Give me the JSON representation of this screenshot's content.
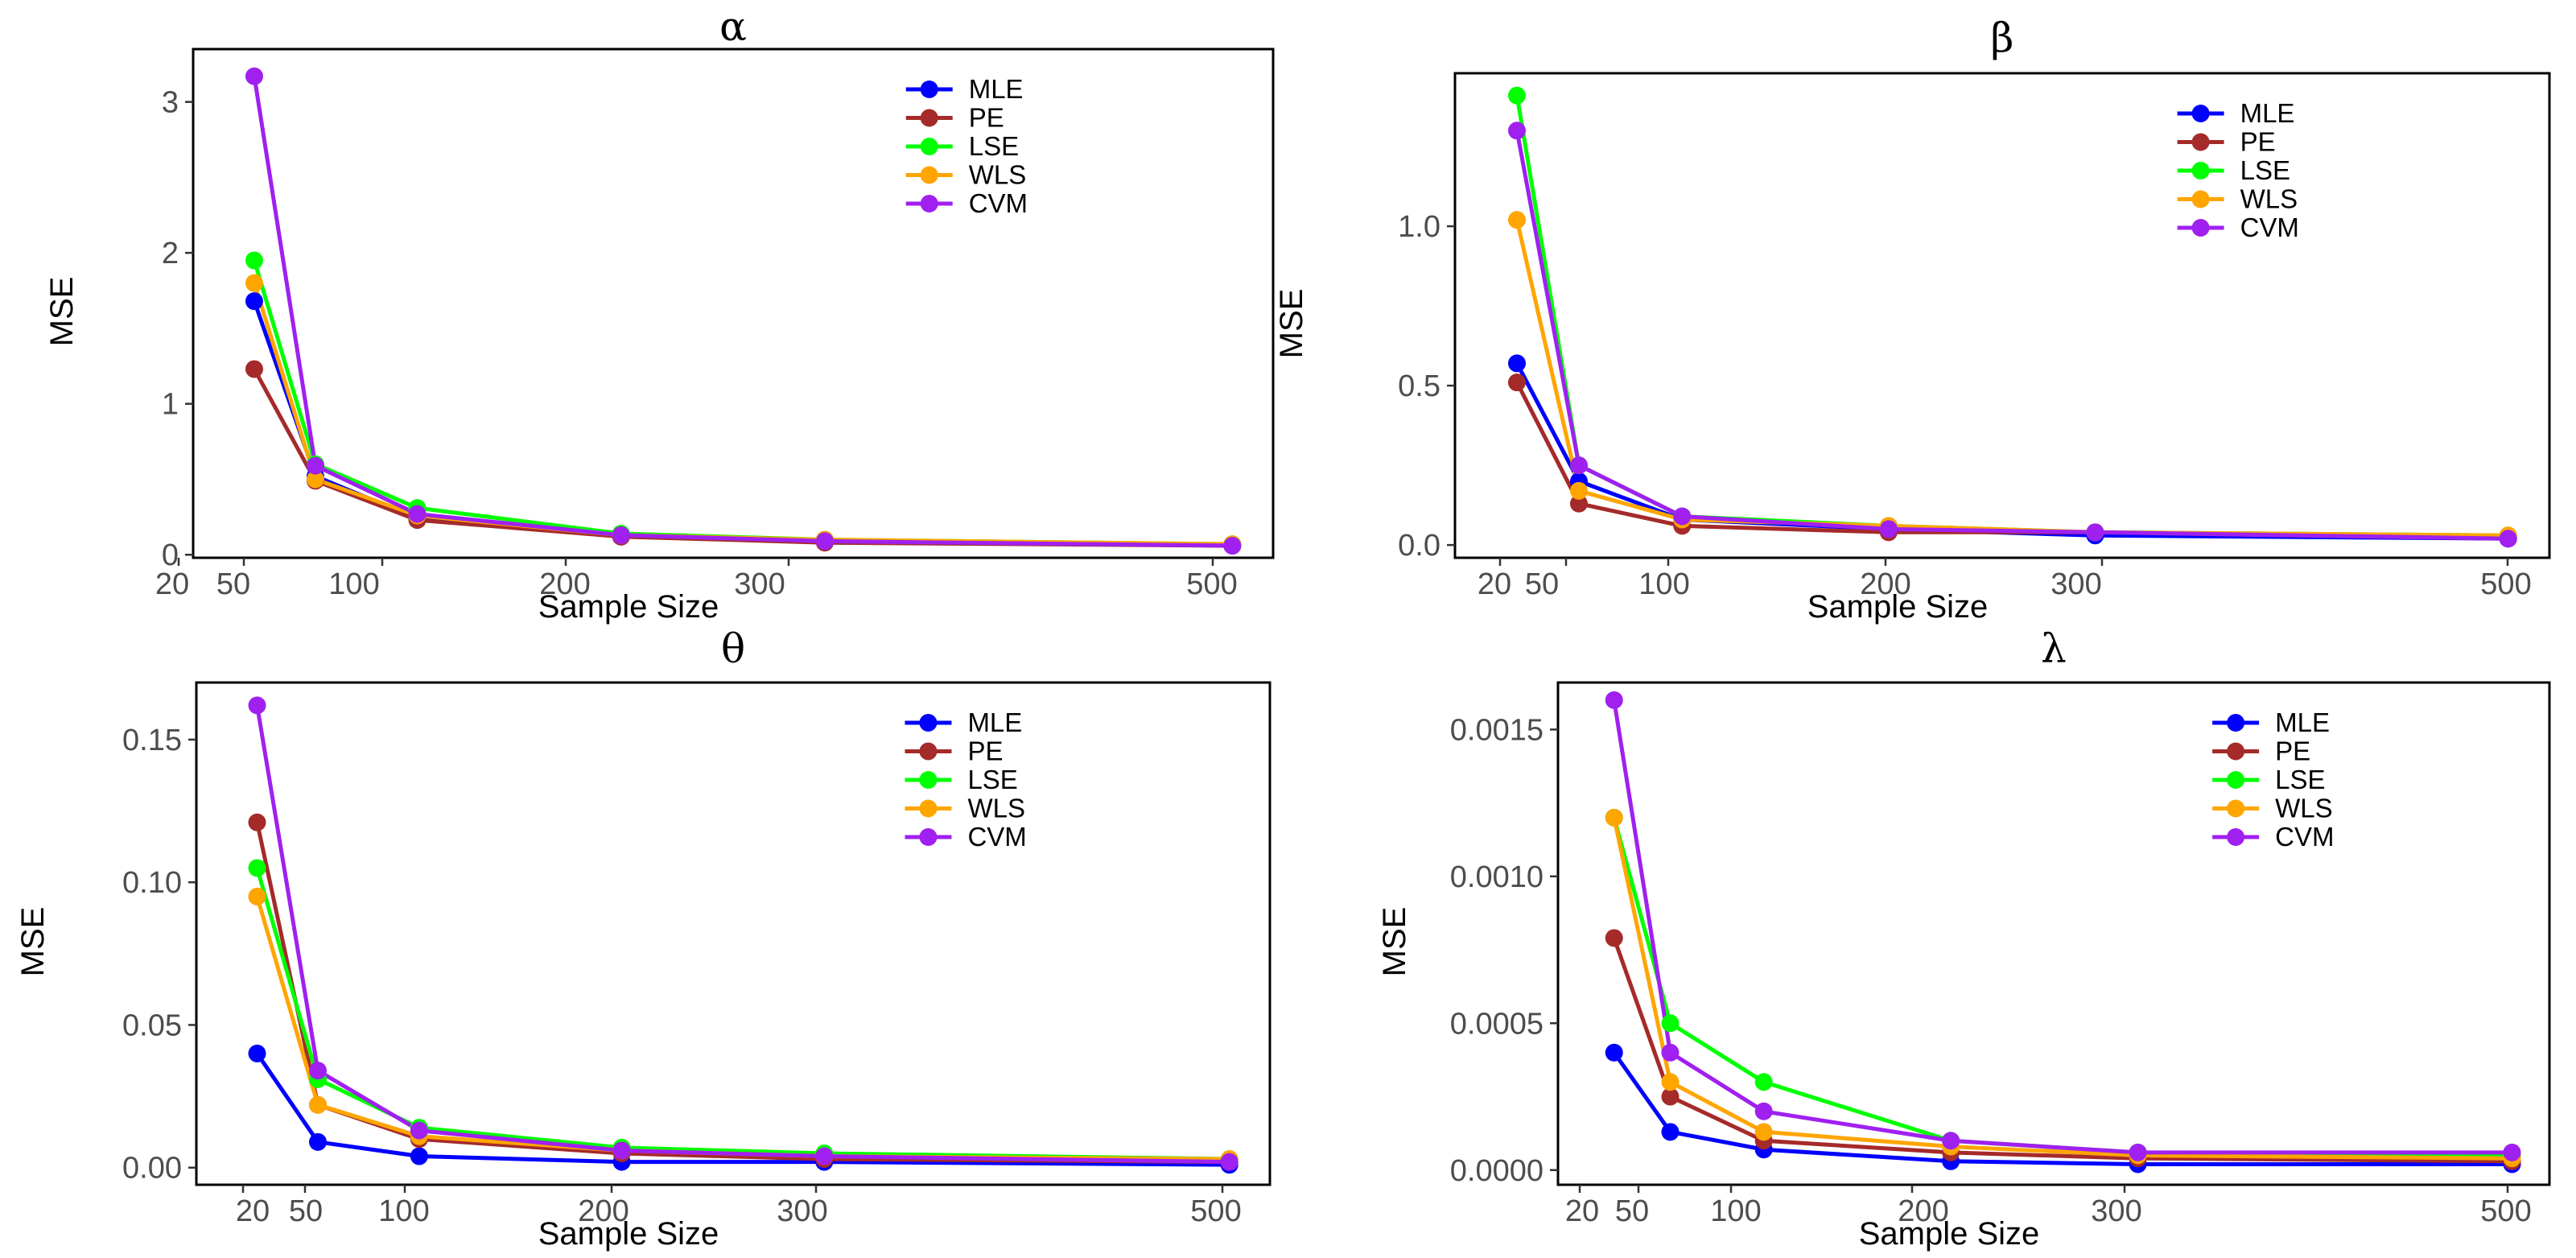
{
  "chart_data": [
    {
      "type": "line",
      "title": "α",
      "xlabel": "Sample Size",
      "ylabel": "MSE",
      "x": [
        20,
        50,
        100,
        200,
        300,
        500
      ],
      "x_tick_labels": [
        "20",
        "50",
        "100",
        "200",
        "300",
        "500"
      ],
      "xlim": [
        -10,
        520
      ],
      "ylim": [
        -0.02,
        3.35
      ],
      "y_ticks": [
        0,
        1,
        2,
        3
      ],
      "y_tick_labels": [
        "0",
        "1",
        "2",
        "3"
      ],
      "legend_position": "top-right",
      "series": [
        {
          "name": "MLE",
          "color": "#0000ff",
          "values": [
            1.68,
            0.52,
            0.24,
            0.12,
            0.09,
            0.06
          ]
        },
        {
          "name": "PE",
          "color": "#a52a2a",
          "values": [
            1.23,
            0.49,
            0.23,
            0.12,
            0.08,
            0.06
          ]
        },
        {
          "name": "LSE",
          "color": "#00ff00",
          "values": [
            1.95,
            0.6,
            0.31,
            0.14,
            0.1,
            0.07
          ]
        },
        {
          "name": "WLS",
          "color": "#ffa500",
          "values": [
            1.8,
            0.5,
            0.26,
            0.13,
            0.1,
            0.07
          ]
        },
        {
          "name": "CVM",
          "color": "#a020f0",
          "values": [
            3.17,
            0.59,
            0.27,
            0.13,
            0.09,
            0.06
          ]
        }
      ]
    },
    {
      "type": "line",
      "title": "β",
      "xlabel": "Sample Size",
      "ylabel": "MSE",
      "x": [
        20,
        50,
        100,
        200,
        300,
        500
      ],
      "x_tick_labels": [
        "20",
        "50",
        "100",
        "200",
        "300",
        "500"
      ],
      "xlim": [
        -10,
        520
      ],
      "ylim": [
        -0.04,
        1.48
      ],
      "y_ticks": [
        0.0,
        0.5,
        1.0
      ],
      "y_tick_labels": [
        "0.0",
        "0.5",
        "1.0"
      ],
      "legend_position": "top-right",
      "series": [
        {
          "name": "MLE",
          "color": "#0000ff",
          "values": [
            0.57,
            0.2,
            0.08,
            0.05,
            0.03,
            0.02
          ]
        },
        {
          "name": "PE",
          "color": "#a52a2a",
          "values": [
            0.51,
            0.13,
            0.06,
            0.04,
            0.04,
            0.02
          ]
        },
        {
          "name": "LSE",
          "color": "#00ff00",
          "values": [
            1.41,
            0.25,
            0.09,
            0.06,
            0.04,
            0.03
          ]
        },
        {
          "name": "WLS",
          "color": "#ffa500",
          "values": [
            1.02,
            0.17,
            0.08,
            0.06,
            0.04,
            0.03
          ]
        },
        {
          "name": "CVM",
          "color": "#a020f0",
          "values": [
            1.3,
            0.25,
            0.09,
            0.05,
            0.04,
            0.02
          ]
        }
      ]
    },
    {
      "type": "line",
      "title": "θ",
      "xlabel": "Sample Size",
      "ylabel": "MSE",
      "x": [
        20,
        50,
        100,
        200,
        300,
        500
      ],
      "x_tick_labels": [
        "20",
        "50",
        "100",
        "200",
        "300",
        "500"
      ],
      "xlim": [
        -10,
        520
      ],
      "ylim": [
        -0.006,
        0.17
      ],
      "y_ticks": [
        0.0,
        0.05,
        0.1,
        0.15
      ],
      "y_tick_labels": [
        "0.00",
        "0.05",
        "0.10",
        "0.15"
      ],
      "legend_position": "top-right",
      "series": [
        {
          "name": "MLE",
          "color": "#0000ff",
          "values": [
            0.04,
            0.009,
            0.004,
            0.002,
            0.002,
            0.001
          ]
        },
        {
          "name": "PE",
          "color": "#a52a2a",
          "values": [
            0.121,
            0.022,
            0.01,
            0.005,
            0.003,
            0.002
          ]
        },
        {
          "name": "LSE",
          "color": "#00ff00",
          "values": [
            0.105,
            0.031,
            0.014,
            0.007,
            0.005,
            0.003
          ]
        },
        {
          "name": "WLS",
          "color": "#ffa500",
          "values": [
            0.095,
            0.022,
            0.011,
            0.006,
            0.004,
            0.003
          ]
        },
        {
          "name": "CVM",
          "color": "#a020f0",
          "values": [
            0.162,
            0.034,
            0.013,
            0.006,
            0.004,
            0.002
          ]
        }
      ]
    },
    {
      "type": "line",
      "title": "λ",
      "xlabel": "Sample Size",
      "ylabel": "MSE",
      "x": [
        20,
        50,
        100,
        200,
        300,
        500
      ],
      "x_tick_labels": [
        "20",
        "50",
        "100",
        "200",
        "300",
        "500"
      ],
      "xlim": [
        -10,
        520
      ],
      "ylim": [
        -5e-05,
        0.00166
      ],
      "y_ticks": [
        0.0,
        0.0005,
        0.001,
        0.0015
      ],
      "y_tick_labels": [
        "0.0000",
        "0.0005",
        "0.0010",
        "0.0015"
      ],
      "legend_position": "top-right",
      "series": [
        {
          "name": "MLE",
          "color": "#0000ff",
          "values": [
            0.0004,
            0.00013,
            7e-05,
            3e-05,
            2e-05,
            2e-05
          ]
        },
        {
          "name": "PE",
          "color": "#a52a2a",
          "values": [
            0.00079,
            0.00025,
            0.0001,
            6e-05,
            4e-05,
            3e-05
          ]
        },
        {
          "name": "LSE",
          "color": "#00ff00",
          "values": [
            0.0012,
            0.0005,
            0.0003,
            0.0001,
            6e-05,
            5e-05
          ]
        },
        {
          "name": "WLS",
          "color": "#ffa500",
          "values": [
            0.0012,
            0.0003,
            0.00013,
            8e-05,
            5e-05,
            4e-05
          ]
        },
        {
          "name": "CVM",
          "color": "#a020f0",
          "values": [
            0.0016,
            0.0004,
            0.0002,
            0.0001,
            6e-05,
            6e-05
          ]
        }
      ]
    }
  ]
}
